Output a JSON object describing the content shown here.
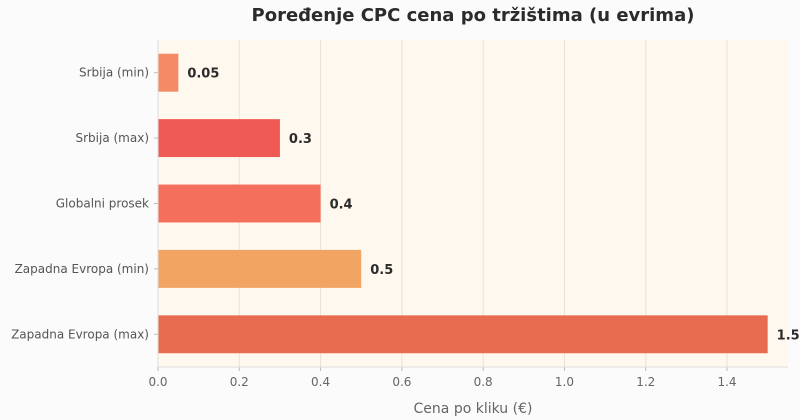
{
  "chart_data": {
    "type": "bar",
    "orientation": "horizontal",
    "title": "Poređenje CPC cena po tržištima (u evrima)",
    "xlabel": "Cena po kliku (€)",
    "ylabel": "",
    "xlim": [
      0,
      1.55
    ],
    "x_ticks": [
      "0.0",
      "0.2",
      "0.4",
      "0.6",
      "0.8",
      "1.0",
      "1.2",
      "1.4"
    ],
    "grid": "vertical",
    "categories": [
      "Srbija (min)",
      "Srbija (max)",
      "Globalni prosek",
      "Zapadna Evropa (min)",
      "Zapadna Evropa (max)"
    ],
    "values": [
      0.05,
      0.3,
      0.4,
      0.5,
      1.5
    ],
    "value_labels": [
      "0.05",
      "0.3",
      "0.4",
      "0.5",
      "1.5"
    ],
    "colors": [
      "#f48a66",
      "#f05a55",
      "#f46f5c",
      "#f2a462",
      "#e86d50"
    ],
    "plot_background": "#fff8ee"
  }
}
